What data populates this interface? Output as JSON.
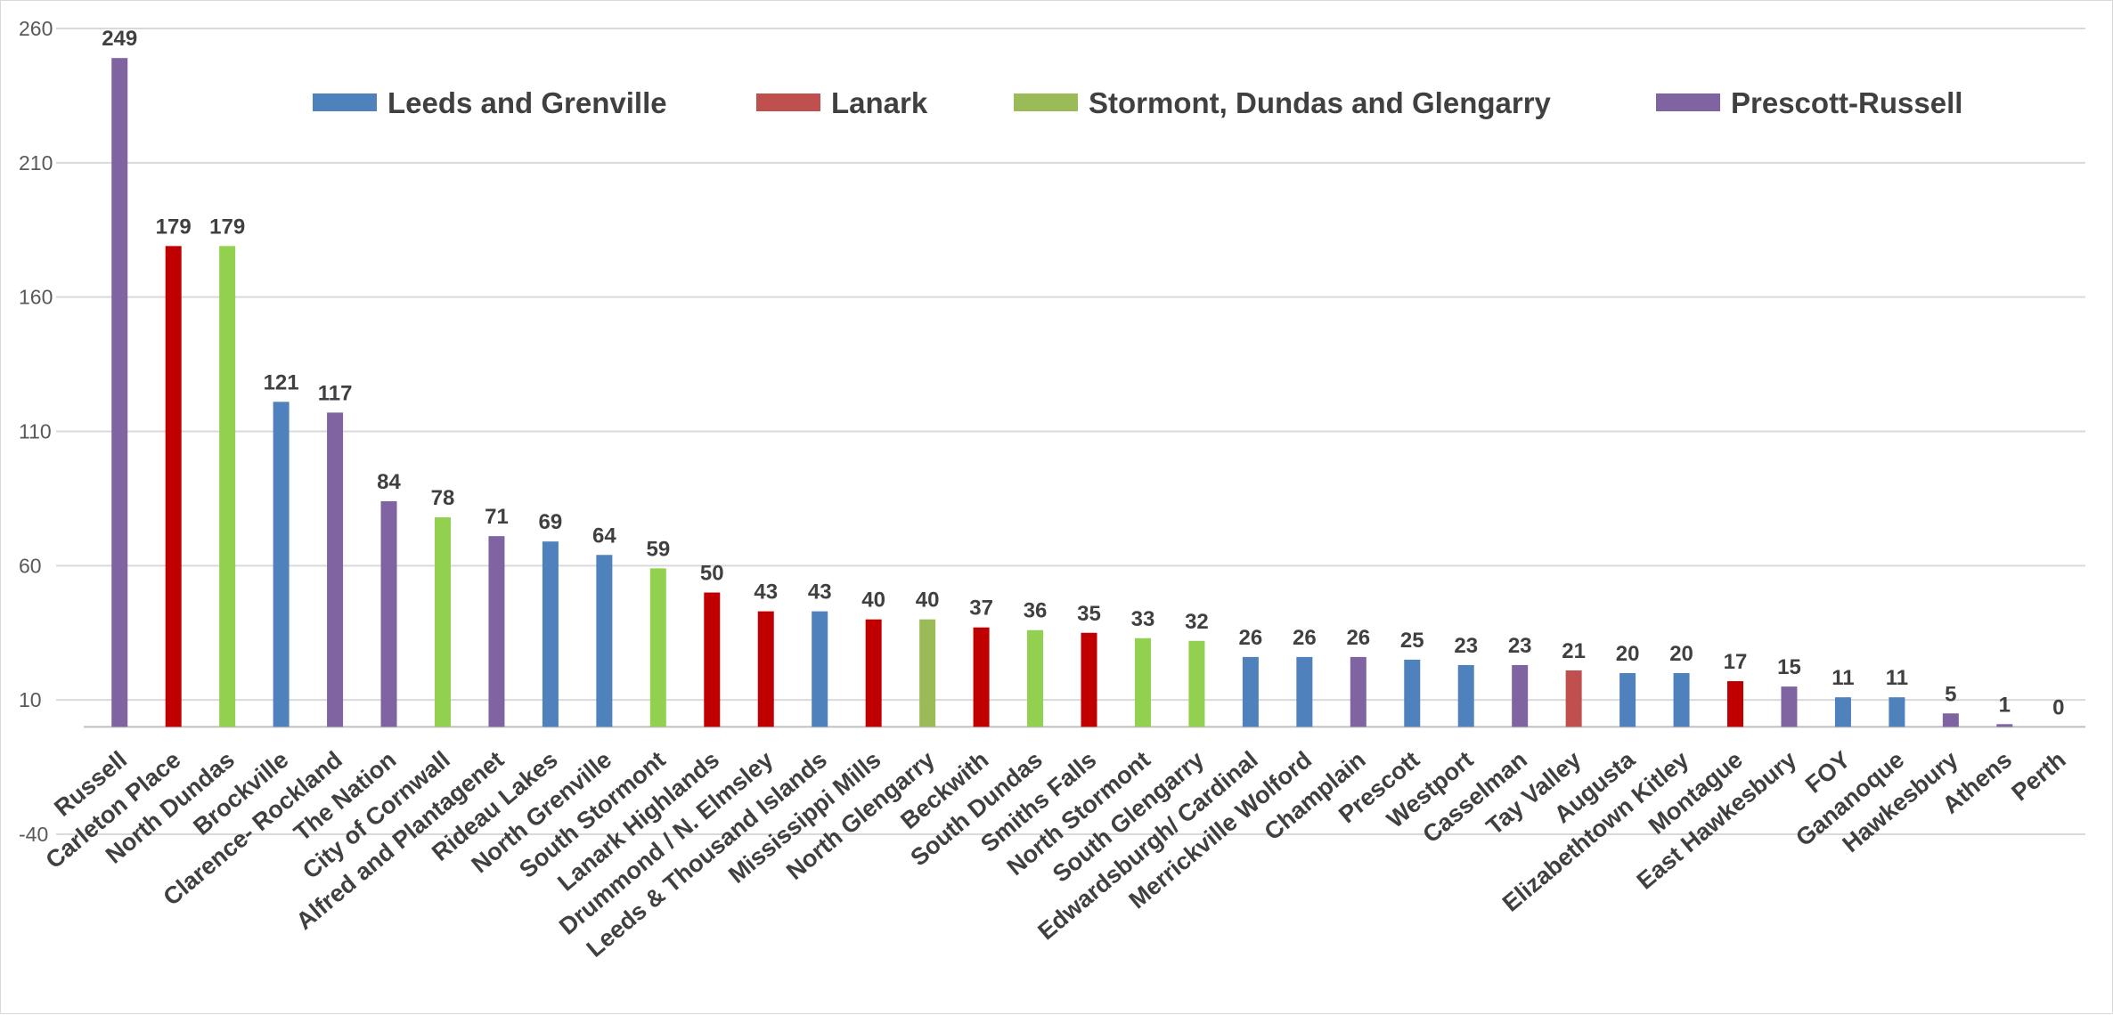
{
  "chart_data": {
    "type": "bar",
    "title": "",
    "xlabel": "",
    "ylabel": "",
    "ylim": [
      -40,
      260
    ],
    "yticks": [
      -40,
      10,
      60,
      110,
      160,
      210,
      260
    ],
    "grid": true,
    "legend_position": "top",
    "colors": {
      "leeds": "#4f81bd",
      "lanark": "#c0504d",
      "stormont": "#92d050",
      "prescott": "#8064a2",
      "lanark_bar": "#c00000",
      "stormont_alt": "#9bbb59"
    },
    "legend": [
      {
        "label": "Leeds and Grenville",
        "color": "#4f81bd"
      },
      {
        "label": "Lanark",
        "color": "#c0504d"
      },
      {
        "label": "Stormont, Dundas and Glengarry",
        "color": "#9bbb59"
      },
      {
        "label": "Prescott-Russell",
        "color": "#8064a2"
      }
    ],
    "categories": [
      "Russell",
      "Carleton Place",
      "North Dundas",
      "Brockville",
      "Clarence- Rockland",
      "The Nation",
      "City of Cornwall",
      "Alfred and Plantagenet",
      "Rideau Lakes",
      "North Grenville",
      "South Stormont",
      "Lanark Highlands",
      "Drummond / N. Elmsley",
      "Leeds & Thousand Islands",
      "Mississippi Mills",
      "North Glengarry",
      "Beckwith",
      "South Dundas",
      "Smiths Falls",
      "North Stormont",
      "South Glengarry",
      "Edwardsburgh/ Cardinal",
      "Merrickville Wolford",
      "Champlain",
      "Prescott",
      "Westport",
      "Casselman",
      "Tay Valley",
      "Augusta",
      "Elizabethtown Kitley",
      "Montague",
      "East Hawkesbury",
      "FOY",
      "Gananoque",
      "Hawkesbury",
      "Athens",
      "Perth"
    ],
    "values": [
      249,
      179,
      179,
      121,
      117,
      84,
      78,
      71,
      69,
      64,
      59,
      50,
      43,
      43,
      40,
      40,
      37,
      36,
      35,
      33,
      32,
      26,
      26,
      26,
      25,
      23,
      23,
      21,
      20,
      20,
      17,
      15,
      11,
      11,
      5,
      1,
      0
    ],
    "bar_colors": [
      "#8064a2",
      "#c00000",
      "#92d050",
      "#4f81bd",
      "#8064a2",
      "#8064a2",
      "#92d050",
      "#8064a2",
      "#4f81bd",
      "#4f81bd",
      "#92d050",
      "#c00000",
      "#c00000",
      "#4f81bd",
      "#c00000",
      "#9bbb59",
      "#c00000",
      "#92d050",
      "#c00000",
      "#92d050",
      "#92d050",
      "#4f81bd",
      "#4f81bd",
      "#8064a2",
      "#4f81bd",
      "#4f81bd",
      "#8064a2",
      "#c0504d",
      "#4f81bd",
      "#4f81bd",
      "#c00000",
      "#8064a2",
      "#4f81bd",
      "#4f81bd",
      "#8064a2",
      "#8064a2",
      "#4f81bd"
    ]
  }
}
